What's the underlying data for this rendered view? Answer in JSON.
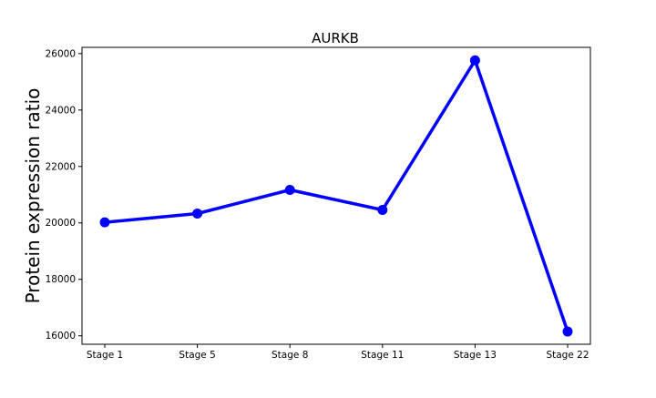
{
  "chart_data": {
    "type": "line",
    "title": "AURKB",
    "xlabel": "",
    "ylabel": "Protein expression ratio",
    "categories": [
      "Stage 1",
      "Stage 5",
      "Stage 8",
      "Stage 11",
      "Stage 13",
      "Stage 22"
    ],
    "series": [
      {
        "values": [
          20020,
          20330,
          21170,
          20460,
          25760,
          16150
        ],
        "color": "#0000ff"
      }
    ],
    "yticks": [
      16000,
      18000,
      20000,
      22000,
      24000,
      26000
    ],
    "ytick_labels": [
      "16000",
      "18000",
      "20000",
      "22000",
      "24000",
      "26000"
    ],
    "ylim": [
      15700,
      26220
    ],
    "grid": false,
    "legend": false
  }
}
